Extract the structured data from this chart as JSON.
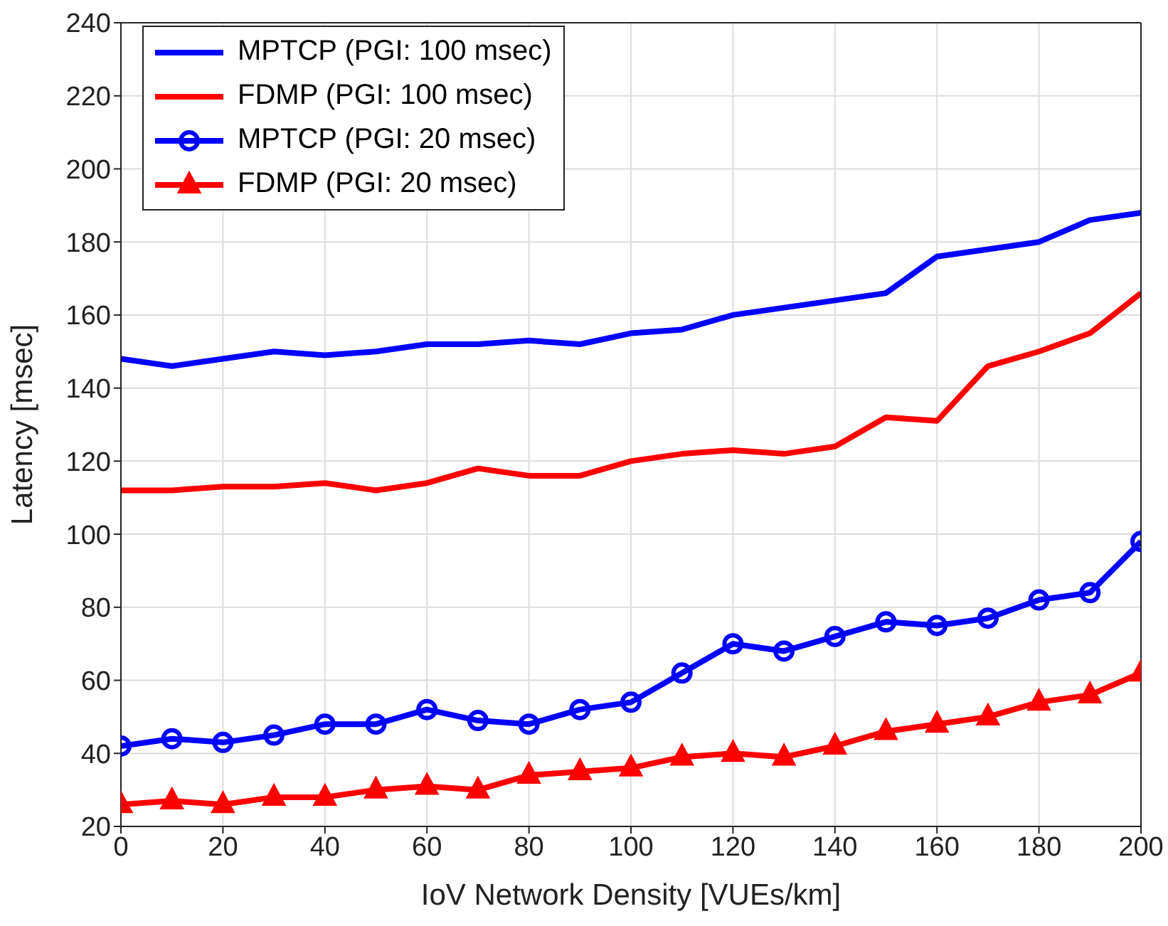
{
  "chart_data": {
    "type": "line",
    "xlabel": "IoV Network Density [VUEs/km]",
    "ylabel": "Latency [msec]",
    "x": [
      0,
      10,
      20,
      30,
      40,
      50,
      60,
      70,
      80,
      90,
      100,
      110,
      120,
      130,
      140,
      150,
      160,
      170,
      180,
      190,
      200
    ],
    "series": [
      {
        "name": "MPTCP (PGI: 100 msec)",
        "color": "#0000ff",
        "marker": "none",
        "values": [
          148,
          146,
          148,
          150,
          149,
          150,
          152,
          152,
          153,
          152,
          155,
          156,
          160,
          162,
          164,
          166,
          176,
          178,
          180,
          186,
          188
        ]
      },
      {
        "name": "FDMP (PGI: 100 msec)",
        "color": "#ff0000",
        "marker": "none",
        "values": [
          112,
          112,
          113,
          113,
          114,
          112,
          114,
          118,
          116,
          116,
          120,
          122,
          123,
          122,
          124,
          132,
          131,
          146,
          150,
          155,
          166
        ]
      },
      {
        "name": "MPTCP (PGI: 20 msec)",
        "color": "#0000ff",
        "marker": "circle",
        "values": [
          42,
          44,
          43,
          45,
          48,
          48,
          52,
          49,
          48,
          52,
          54,
          62,
          70,
          68,
          72,
          76,
          75,
          77,
          82,
          84,
          98
        ]
      },
      {
        "name": "FDMP (PGI: 20 msec)",
        "color": "#ff0000",
        "marker": "triangle",
        "values": [
          26,
          27,
          26,
          28,
          28,
          30,
          31,
          30,
          34,
          35,
          36,
          39,
          40,
          39,
          42,
          46,
          48,
          50,
          54,
          56,
          62
        ]
      }
    ],
    "xlim": [
      0,
      200
    ],
    "xticks": [
      0,
      20,
      40,
      60,
      80,
      100,
      120,
      140,
      160,
      180,
      200
    ],
    "ylim": [
      20,
      240
    ],
    "yticks": [
      20,
      40,
      60,
      80,
      100,
      120,
      140,
      160,
      180,
      200,
      220,
      240
    ],
    "grid": true,
    "legend": "top left"
  }
}
